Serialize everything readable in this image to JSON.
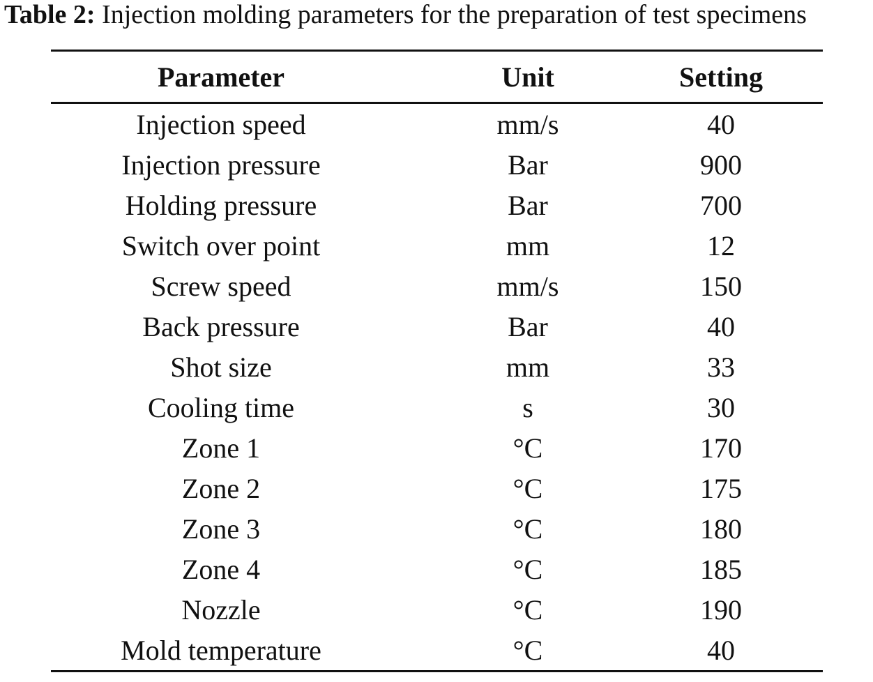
{
  "caption": {
    "label": "Table 2:",
    "text": " Injection molding parameters for the preparation of test specimens"
  },
  "table": {
    "headers": {
      "parameter": "Parameter",
      "unit": "Unit",
      "setting": "Setting"
    },
    "rows": [
      {
        "parameter": "Injection speed",
        "unit": "mm/s",
        "setting": "40"
      },
      {
        "parameter": "Injection pressure",
        "unit": "Bar",
        "setting": "900"
      },
      {
        "parameter": "Holding pressure",
        "unit": "Bar",
        "setting": "700"
      },
      {
        "parameter": "Switch over point",
        "unit": "mm",
        "setting": "12"
      },
      {
        "parameter": "Screw speed",
        "unit": "mm/s",
        "setting": "150"
      },
      {
        "parameter": "Back pressure",
        "unit": "Bar",
        "setting": "40"
      },
      {
        "parameter": "Shot size",
        "unit": "mm",
        "setting": "33"
      },
      {
        "parameter": "Cooling time",
        "unit": "s",
        "setting": "30"
      },
      {
        "parameter": "Zone 1",
        "unit": "°C",
        "setting": "170"
      },
      {
        "parameter": "Zone 2",
        "unit": "°C",
        "setting": "175"
      },
      {
        "parameter": "Zone 3",
        "unit": "°C",
        "setting": "180"
      },
      {
        "parameter": "Zone 4",
        "unit": "°C",
        "setting": "185"
      },
      {
        "parameter": "Nozzle",
        "unit": "°C",
        "setting": "190"
      },
      {
        "parameter": "Mold temperature",
        "unit": "°C",
        "setting": "40"
      }
    ]
  }
}
